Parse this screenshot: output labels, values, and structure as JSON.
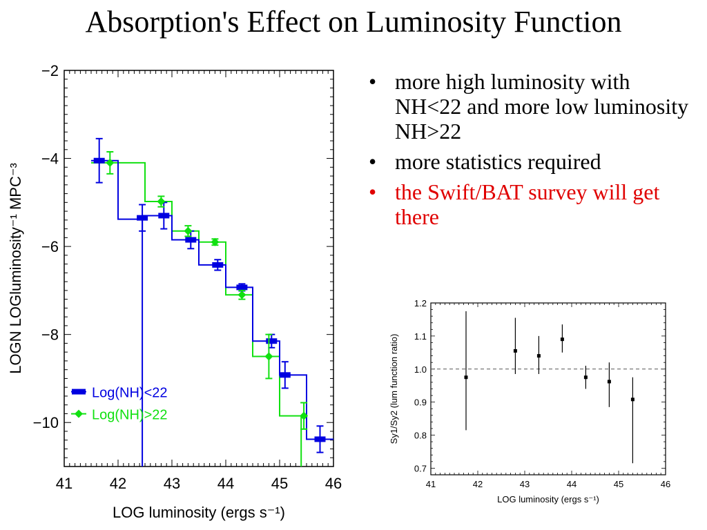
{
  "slide": {
    "title": "Absorption's Effect on Luminosity Function",
    "bullets": [
      {
        "text": "more high luminosity with NH<22 and more low luminosity NH>22",
        "color": "#000000"
      },
      {
        "text": "more statistics required",
        "color": "#000000"
      },
      {
        "text": "the Swift/BAT survey will get there",
        "color": "#e00000"
      }
    ]
  },
  "chart_data": [
    {
      "type": "line",
      "step": true,
      "xlabel": "LOG luminosity (ergs s⁻¹)",
      "ylabel": "LOGN LOGluminosity⁻¹ MPC⁻³",
      "xlim": [
        41,
        46
      ],
      "ylim": [
        -11,
        -2
      ],
      "xticks": [
        41,
        42,
        43,
        44,
        45,
        46
      ],
      "yticks": [
        -2,
        -4,
        -6,
        -8,
        -10
      ],
      "legend_placement": "bottom-left",
      "series": [
        {
          "name": "Log(NH)<22",
          "color": "#0000e0",
          "marker": "square",
          "points": [
            {
              "x": 41.65,
              "y": -4.05,
              "err": 0.5
            },
            {
              "x": 42.45,
              "y": -5.35,
              "err": 0.3
            },
            {
              "x": 42.85,
              "y": -5.3,
              "err": 0.3
            },
            {
              "x": 43.35,
              "y": -5.85,
              "err": 0.2
            },
            {
              "x": 43.85,
              "y": -6.42,
              "err": 0.12
            },
            {
              "x": 44.3,
              "y": -6.93,
              "err": 0.08
            },
            {
              "x": 44.85,
              "y": -8.15,
              "err": 0.15
            },
            {
              "x": 45.1,
              "y": -8.92,
              "err": 0.3
            },
            {
              "x": 45.75,
              "y": -10.38,
              "err": 0.3
            }
          ],
          "steps": [
            [
              41.5,
              -4.05
            ],
            [
              42.0,
              -4.05
            ],
            [
              42.0,
              -5.38
            ],
            [
              42.45,
              -5.38
            ],
            [
              42.45,
              -11
            ],
            [
              42.45,
              -5.3
            ],
            [
              43.0,
              -5.3
            ],
            [
              43.0,
              -5.85
            ],
            [
              43.5,
              -5.85
            ],
            [
              43.5,
              -6.42
            ],
            [
              44.0,
              -6.42
            ],
            [
              44.0,
              -6.93
            ],
            [
              44.5,
              -6.93
            ],
            [
              44.5,
              -8.15
            ],
            [
              45.0,
              -8.15
            ],
            [
              45.0,
              -8.92
            ],
            [
              45.5,
              -8.92
            ],
            [
              45.5,
              -10.38
            ],
            [
              46.0,
              -10.38
            ]
          ]
        },
        {
          "name": "Log(NH)>22",
          "color": "#10e010",
          "marker": "diamond",
          "points": [
            {
              "x": 41.85,
              "y": -4.1,
              "err": 0.25
            },
            {
              "x": 42.8,
              "y": -4.98,
              "err": 0.12
            },
            {
              "x": 43.3,
              "y": -5.65,
              "err": 0.12
            },
            {
              "x": 43.8,
              "y": -5.9,
              "err": 0.07
            },
            {
              "x": 44.3,
              "y": -7.1,
              "err": 0.1
            },
            {
              "x": 44.8,
              "y": -8.5,
              "err": 0.5
            },
            {
              "x": 45.45,
              "y": -9.85,
              "err": 0.3
            }
          ],
          "steps": [
            [
              41.5,
              -4.1
            ],
            [
              42.0,
              -4.1
            ],
            [
              42.5,
              -4.1
            ],
            [
              42.5,
              -4.98
            ],
            [
              43.0,
              -4.98
            ],
            [
              43.0,
              -5.65
            ],
            [
              43.5,
              -5.65
            ],
            [
              43.5,
              -5.9
            ],
            [
              44.0,
              -5.9
            ],
            [
              44.0,
              -7.1
            ],
            [
              44.5,
              -7.1
            ],
            [
              44.5,
              -8.5
            ],
            [
              45.0,
              -8.5
            ],
            [
              45.0,
              -9.85
            ],
            [
              45.4,
              -9.85
            ],
            [
              45.4,
              -11
            ]
          ]
        }
      ]
    },
    {
      "type": "scatter",
      "xlabel": "LOG luminosity (ergs s⁻¹)",
      "ylabel": "Sy1/Sy2 (lum function ratio)",
      "xlim": [
        41,
        46
      ],
      "ylim": [
        0.68,
        1.2
      ],
      "xticks": [
        41,
        42,
        43,
        44,
        45,
        46
      ],
      "yticks": [
        0.7,
        0.8,
        0.9,
        1.0,
        1.1,
        1.2
      ],
      "ytick_labels": [
        "0.7",
        "0.8",
        "0.9",
        "1.0",
        "1.1",
        "1.2"
      ],
      "reference_line": 1.0,
      "series": [
        {
          "color": "#000000",
          "points": [
            {
              "x": 41.75,
              "y": 0.975,
              "lo": 0.815,
              "hi": 1.175
            },
            {
              "x": 42.8,
              "y": 1.055,
              "lo": 0.985,
              "hi": 1.155
            },
            {
              "x": 43.3,
              "y": 1.04,
              "lo": 0.985,
              "hi": 1.1
            },
            {
              "x": 43.8,
              "y": 1.09,
              "lo": 1.05,
              "hi": 1.135
            },
            {
              "x": 44.3,
              "y": 0.975,
              "lo": 0.94,
              "hi": 1.01
            },
            {
              "x": 44.8,
              "y": 0.962,
              "lo": 0.885,
              "hi": 1.02
            },
            {
              "x": 45.3,
              "y": 0.908,
              "lo": 0.715,
              "hi": 0.975
            }
          ]
        }
      ]
    }
  ]
}
